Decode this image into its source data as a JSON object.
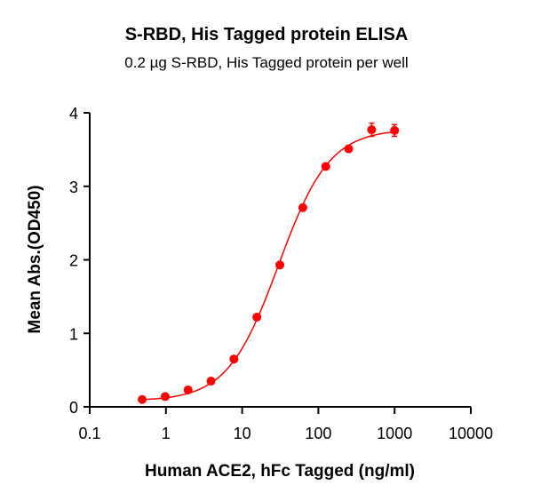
{
  "chart_data": {
    "type": "scatter",
    "title": "S-RBD, His Tagged protein ELISA",
    "subtitle": "0.2 µg S-RBD, His Tagged protein per well",
    "xlabel": "Human ACE2, hFc Tagged (ng/ml)",
    "ylabel": "Mean Abs.(OD450)",
    "xscale": "log",
    "xlim": [
      0.1,
      10000
    ],
    "ylim": [
      0,
      4
    ],
    "xticks": [
      "0.1",
      "1",
      "10",
      "100",
      "1000",
      "10000"
    ],
    "xtick_values": [
      0.1,
      1,
      10,
      100,
      1000,
      10000
    ],
    "yticks": [
      "0",
      "1",
      "2",
      "3",
      "4"
    ],
    "ytick_values": [
      0,
      1,
      2,
      3,
      4
    ],
    "grid": false,
    "color": "#ff0000",
    "series": [
      {
        "name": "S-RBD, His Tagged protein",
        "x": [
          0.488,
          0.977,
          1.95,
          3.9,
          7.8,
          15.6,
          31.25,
          62.5,
          125,
          250,
          500,
          1000
        ],
        "y": [
          0.1,
          0.14,
          0.23,
          0.35,
          0.65,
          1.22,
          1.93,
          2.71,
          3.27,
          3.51,
          3.77,
          3.76
        ],
        "error": [
          0.01,
          0.01,
          0.02,
          0.01,
          0.02,
          0.02,
          0.02,
          0.02,
          0.03,
          0.03,
          0.09,
          0.08
        ]
      }
    ]
  }
}
